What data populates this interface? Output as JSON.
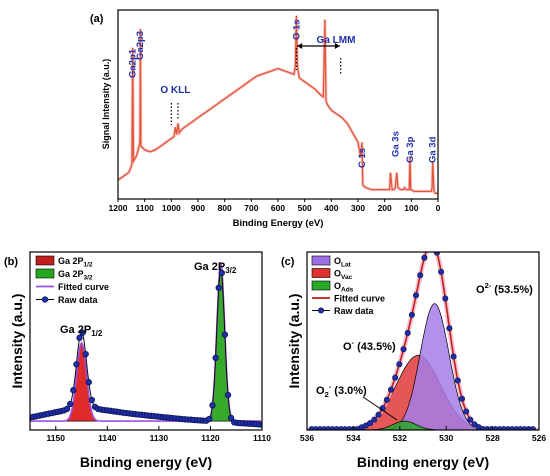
{
  "chart_data": [
    {
      "panel_label": "(a)",
      "type": "line",
      "xlabel": "Binding Energy (eV)",
      "ylabel": "Signal Intensity (a.u.)",
      "xlim": [
        1200,
        0
      ],
      "x_ticks": [
        1200,
        1100,
        1000,
        900,
        800,
        700,
        600,
        500,
        400,
        300,
        200,
        100,
        0
      ],
      "series": [
        {
          "color": "#e4563a",
          "x": [
            1200,
            1180,
            1160,
            1148,
            1145,
            1142,
            1130,
            1118,
            1116,
            1114,
            1100,
            1080,
            1060,
            1040,
            1020,
            1000,
            990,
            985,
            980,
            975,
            970,
            960,
            940,
            920,
            900,
            880,
            860,
            840,
            820,
            800,
            780,
            760,
            740,
            720,
            700,
            680,
            660,
            640,
            620,
            600,
            580,
            560,
            540,
            535,
            531,
            527,
            520,
            500,
            480,
            460,
            440,
            430,
            424,
            420,
            415,
            410,
            400,
            390,
            380,
            370,
            360,
            340,
            320,
            300,
            290,
            285,
            282,
            280,
            270,
            250,
            230,
            210,
            200,
            190,
            182,
            178,
            172,
            165,
            160,
            155,
            150,
            140,
            130,
            125,
            120,
            108,
            105,
            102,
            100,
            90,
            80,
            60,
            40,
            25,
            22,
            20,
            15,
            10,
            0
          ],
          "y": [
            0.1,
            0.12,
            0.14,
            0.18,
            0.8,
            0.2,
            0.23,
            0.3,
            0.9,
            0.28,
            0.26,
            0.25,
            0.26,
            0.28,
            0.3,
            0.32,
            0.33,
            0.38,
            0.34,
            0.4,
            0.35,
            0.37,
            0.39,
            0.41,
            0.43,
            0.45,
            0.47,
            0.49,
            0.51,
            0.53,
            0.55,
            0.57,
            0.59,
            0.61,
            0.63,
            0.65,
            0.66,
            0.67,
            0.68,
            0.69,
            0.68,
            0.67,
            0.66,
            0.7,
            0.97,
            0.7,
            0.64,
            0.62,
            0.6,
            0.58,
            0.55,
            0.54,
            0.95,
            0.52,
            0.5,
            0.49,
            0.47,
            0.46,
            0.45,
            0.44,
            0.43,
            0.4,
            0.35,
            0.3,
            0.22,
            0.3,
            0.08,
            0.07,
            0.06,
            0.05,
            0.05,
            0.05,
            0.05,
            0.05,
            0.05,
            0.14,
            0.05,
            0.05,
            0.06,
            0.14,
            0.06,
            0.05,
            0.05,
            0.06,
            0.05,
            0.05,
            0.22,
            0.05,
            0.05,
            0.04,
            0.04,
            0.04,
            0.04,
            0.04,
            0.06,
            0.2,
            0.04,
            0.03,
            0.03
          ]
        }
      ],
      "annotations": [
        {
          "text": "Ga2p1",
          "x": 1145
        },
        {
          "text": "Ga2p3",
          "x": 1118
        },
        {
          "text": "O KLL",
          "x": 985
        },
        {
          "text": "O 1s",
          "x": 531
        },
        {
          "text": "Ga LMM",
          "x": 440
        },
        {
          "text": "C 1s",
          "x": 285
        },
        {
          "text": "Ga 3s",
          "x": 160
        },
        {
          "text": "Ga 3p",
          "x": 105
        },
        {
          "text": "Ga 3d",
          "x": 20
        }
      ]
    },
    {
      "panel_label": "(b)",
      "type": "line",
      "xlabel": "Binding energy (eV)",
      "ylabel": "Intensity (a.u.)",
      "xlim": [
        1155,
        1110
      ],
      "x_ticks": [
        1150,
        1140,
        1130,
        1120,
        1110
      ],
      "legend": [
        "Ga 2P1/2",
        "Ga 2P3/2",
        "Fitted curve",
        "Raw data"
      ],
      "legend_colors": [
        "#c0201b",
        "#22a81c",
        "#9b4fe0",
        "#1f2fa8"
      ],
      "baseline": 0.05,
      "peaks": [
        {
          "name": "Ga 2P1/2",
          "center": 1145,
          "height": 0.44,
          "sigma": 0.95,
          "color": "#e02020"
        },
        {
          "name": "Ga 2P3/2",
          "center": 1118,
          "height": 0.89,
          "sigma": 0.75,
          "color": "#2ca61f"
        }
      ],
      "background": [
        {
          "x": 1155,
          "y": 0.07
        },
        {
          "x": 1150,
          "y": 0.1
        },
        {
          "x": 1145,
          "y": 0.13
        },
        {
          "x": 1140,
          "y": 0.11
        },
        {
          "x": 1135,
          "y": 0.09
        },
        {
          "x": 1130,
          "y": 0.075
        },
        {
          "x": 1125,
          "y": 0.06
        },
        {
          "x": 1120,
          "y": 0.05
        },
        {
          "x": 1118,
          "y": 0.05
        },
        {
          "x": 1115,
          "y": 0.04
        },
        {
          "x": 1112,
          "y": 0.035
        },
        {
          "x": 1110,
          "y": 0.03
        }
      ],
      "annotations": [
        {
          "text": "Ga 2P",
          "sub": "1/2",
          "x": 1145
        },
        {
          "text": "Ga 2P",
          "sub": "3/2",
          "x": 1118
        }
      ]
    },
    {
      "panel_label": "(c)",
      "type": "line",
      "xlabel": "Binding energy (eV)",
      "ylabel": "Intensity (a.u.)",
      "xlim": [
        536,
        526
      ],
      "x_ticks": [
        536,
        534,
        532,
        530,
        528,
        526
      ],
      "legend": [
        "OLat",
        "OVac",
        "OAds",
        "Fitted curve",
        "Raw data"
      ],
      "legend_colors": [
        "#9c6fe6",
        "#e03030",
        "#2aa82a",
        "#c0201b",
        "#1f2fa8"
      ],
      "peaks": [
        {
          "name": "OLat",
          "center": 530.5,
          "height": 0.71,
          "sigma": 0.62,
          "color": "#a57ee8"
        },
        {
          "name": "OVac",
          "center": 531.2,
          "height": 0.42,
          "sigma": 0.95,
          "color": "#e03a3a"
        },
        {
          "name": "OAds",
          "center": 531.8,
          "height": 0.05,
          "sigma": 0.5,
          "color": "#2aa82a"
        }
      ],
      "annotations": [
        {
          "text": "O",
          "sup": "2-",
          "tail": " (53.5%)"
        },
        {
          "text": "O",
          "sup": "-",
          "tail": " (43.5%)"
        },
        {
          "text": "O",
          "sub": "2",
          "sup": "-",
          "tail": " (3.0%)"
        }
      ]
    }
  ]
}
